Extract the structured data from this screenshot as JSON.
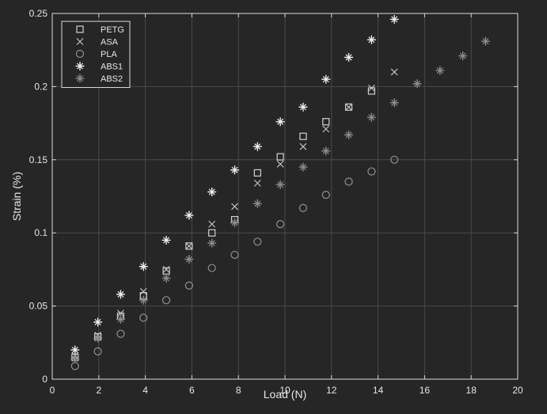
{
  "chart_data": {
    "type": "scatter",
    "xlabel": "Load (N)",
    "ylabel": "Strain (%)",
    "xlim": [
      0,
      20
    ],
    "ylim": [
      0,
      0.25
    ],
    "xticks": [
      "0",
      "2",
      "4",
      "6",
      "8",
      "10",
      "12",
      "14",
      "16",
      "18",
      "20"
    ],
    "yticks": [
      "0",
      "0.05",
      "0.1",
      "0.15",
      "0.2",
      "0.25"
    ],
    "grid": true,
    "legend_position": "top-left",
    "colors": {
      "background": "#262626",
      "axes": "#262626",
      "axis_line": "#d9d9d9",
      "grid": "#4a4a4a",
      "text": "#e6e6e6",
      "legend_bg": "#262626"
    },
    "series": [
      {
        "name": "PETG",
        "marker": "square",
        "color": "#d2d2d2",
        "x": [
          0.98,
          1.96,
          2.94,
          3.92,
          4.9,
          5.88,
          6.86,
          7.84,
          8.82,
          9.8,
          10.78,
          11.76,
          12.74,
          13.72
        ],
        "y": [
          0.015,
          0.029,
          0.043,
          0.057,
          0.074,
          0.091,
          0.1,
          0.109,
          0.141,
          0.152,
          0.166,
          0.176,
          0.186,
          0.197
        ]
      },
      {
        "name": "ASA",
        "marker": "x",
        "color": "#c0c0c0",
        "x": [
          0.98,
          1.96,
          2.94,
          3.92,
          4.9,
          5.88,
          6.86,
          7.84,
          8.82,
          9.8,
          10.78,
          11.76,
          12.74,
          13.72,
          14.7
        ],
        "y": [
          0.016,
          0.03,
          0.045,
          0.06,
          0.075,
          0.091,
          0.106,
          0.118,
          0.134,
          0.147,
          0.159,
          0.171,
          0.186,
          0.199,
          0.21
        ]
      },
      {
        "name": "PLA",
        "marker": "circle",
        "color": "#909090",
        "x": [
          0.98,
          1.96,
          2.94,
          3.92,
          4.9,
          5.88,
          6.86,
          7.84,
          8.82,
          9.8,
          10.78,
          11.76,
          12.74,
          13.72,
          14.7
        ],
        "y": [
          0.009,
          0.019,
          0.031,
          0.042,
          0.054,
          0.064,
          0.076,
          0.085,
          0.094,
          0.106,
          0.117,
          0.126,
          0.135,
          0.142,
          0.15
        ]
      },
      {
        "name": "ABS1",
        "marker": "star",
        "color": "#f0f0f0",
        "x": [
          0.98,
          1.96,
          2.94,
          3.92,
          4.9,
          5.88,
          6.86,
          7.84,
          8.82,
          9.8,
          10.78,
          11.76,
          12.74,
          13.72,
          14.7
        ],
        "y": [
          0.02,
          0.039,
          0.058,
          0.077,
          0.095,
          0.112,
          0.128,
          0.143,
          0.159,
          0.176,
          0.186,
          0.205,
          0.22,
          0.232,
          0.246
        ]
      },
      {
        "name": "ABS2",
        "marker": "star",
        "color": "#8c8c8c",
        "x": [
          0.98,
          1.96,
          2.94,
          3.92,
          4.9,
          5.88,
          6.86,
          7.84,
          8.82,
          9.8,
          10.78,
          11.76,
          12.74,
          13.72,
          14.7,
          15.68,
          16.66,
          17.64,
          18.62
        ],
        "y": [
          0.014,
          0.028,
          0.041,
          0.054,
          0.069,
          0.082,
          0.093,
          0.107,
          0.12,
          0.133,
          0.145,
          0.156,
          0.167,
          0.179,
          0.189,
          0.202,
          0.211,
          0.221,
          0.231
        ]
      }
    ]
  }
}
